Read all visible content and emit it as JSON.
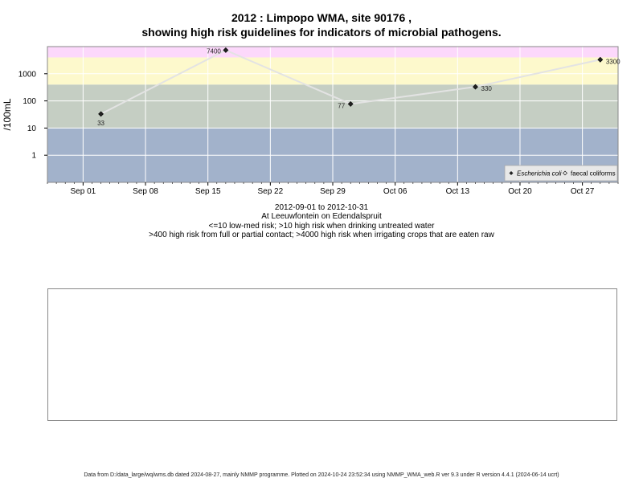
{
  "title_line1": "2012 : Limpopo WMA, site 90176 ,",
  "title_line2": "showing high risk guidelines for indicators of microbial pathogens.",
  "subtitle": {
    "date_range": "2012-09-01 to 2012-10-31",
    "location": "At Leeuwfontein on Edendalspruit",
    "guideline_1": "<=10 low-med risk; >10 high risk when drinking untreated water",
    "guideline_2": ">400 high risk from full or partial contact; >4000 high risk when irrigating crops that are eaten raw"
  },
  "footer": "Data from D:/data_large/wq/wms.db dated 2024-08-27, mainly NMMP programme. Plotted on 2024-10-24 23:52:34 using NMMP_WMA_web.R ver 9.3 under R version 4.4.1 (2024-06-14 ucrt)",
  "chart_data": {
    "type": "line",
    "ylabel": "/100mL",
    "y_scale": "log10",
    "ylim": [
      0.1,
      10000
    ],
    "y_ticks": [
      {
        "value": 1,
        "label": "1"
      },
      {
        "value": 10,
        "label": "10"
      },
      {
        "value": 100,
        "label": "100"
      },
      {
        "value": 1000,
        "label": "1000"
      }
    ],
    "xlim": [
      "2012-08-28",
      "2012-10-31"
    ],
    "x_ticks": [
      {
        "date": "2012-09-01",
        "label": "Sep 01"
      },
      {
        "date": "2012-09-08",
        "label": "Sep 08"
      },
      {
        "date": "2012-09-15",
        "label": "Sep 15"
      },
      {
        "date": "2012-09-22",
        "label": "Sep 22"
      },
      {
        "date": "2012-09-29",
        "label": "Sep 29"
      },
      {
        "date": "2012-10-06",
        "label": "Oct 06"
      },
      {
        "date": "2012-10-13",
        "label": "Oct 13"
      },
      {
        "date": "2012-10-20",
        "label": "Oct 20"
      },
      {
        "date": "2012-10-27",
        "label": "Oct 27"
      }
    ],
    "risk_bands": [
      {
        "from": 0.1,
        "to": 10,
        "color": "#a2b2cb"
      },
      {
        "from": 10,
        "to": 400,
        "color": "#c5cec3"
      },
      {
        "from": 400,
        "to": 4000,
        "color": "#fdf9cc"
      },
      {
        "from": 4000,
        "to": 10000,
        "color": "#fcd8fb"
      }
    ],
    "series": [
      {
        "name": "Escherichia coli",
        "marker": "filled-diamond",
        "line_color": "#e3e3e3",
        "points": [
          {
            "x": "2012-09-03",
            "y": 33,
            "label": "33"
          },
          {
            "x": "2012-09-17",
            "y": 7400,
            "label": "7400"
          },
          {
            "x": "2012-10-01",
            "y": 77,
            "label": "77"
          },
          {
            "x": "2012-10-15",
            "y": 330,
            "label": "330"
          },
          {
            "x": "2012-10-29",
            "y": 3300,
            "label": "3300"
          }
        ]
      },
      {
        "name": "faecal coliforms",
        "marker": "open-diamond",
        "points": []
      }
    ],
    "legend_position": "bottom-right",
    "grid": true
  }
}
